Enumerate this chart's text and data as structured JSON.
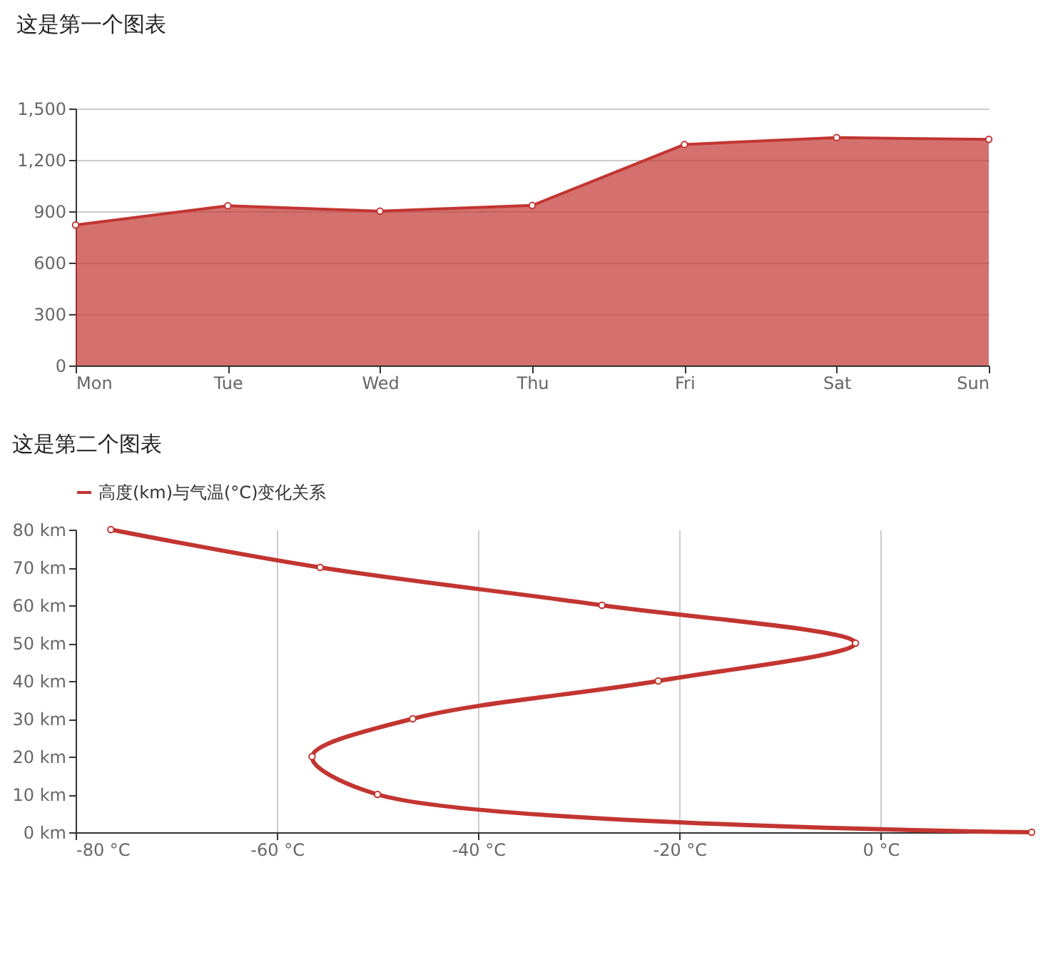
{
  "chart_data": [
    {
      "type": "area",
      "title": "这是第一个图表",
      "categories": [
        "Mon",
        "Tue",
        "Wed",
        "Thu",
        "Fri",
        "Sat",
        "Sun"
      ],
      "series": [
        {
          "color": "#c23531",
          "values": [
            820,
            932,
            901,
            934,
            1290,
            1330,
            1320
          ]
        }
      ],
      "ylim": [
        0,
        1500
      ],
      "yticks": [
        0,
        300,
        600,
        900,
        {
          "value": 1200,
          "label": "1,200"
        },
        {
          "value": 1500,
          "label": "1,500"
        }
      ],
      "grid": "y",
      "marker": "circle",
      "legend": false
    },
    {
      "type": "line",
      "title": "这是第二个图表",
      "legend": "top",
      "series": [
        {
          "name": "高度(km)与气温(°C)变化关系",
          "color": "#c23531",
          "x": [
            15,
            -50,
            -56.5,
            -46.5,
            -22.1,
            -2.5,
            -27.7,
            -55.7,
            -76.5
          ],
          "values": [
            0,
            10,
            20,
            30,
            40,
            50,
            60,
            70,
            80
          ]
        }
      ],
      "xlim": [
        -80,
        15
      ],
      "xticks": [
        {
          "value": -80,
          "label": "-80 °C"
        },
        {
          "value": -60,
          "label": "-60 °C"
        },
        {
          "value": -40,
          "label": "-40 °C"
        },
        {
          "value": -20,
          "label": "-20 °C"
        },
        {
          "value": 0,
          "label": "0 °C"
        }
      ],
      "ylim": [
        0,
        80
      ],
      "yticks": [
        {
          "value": 0,
          "label": "0 km"
        },
        {
          "value": 10,
          "label": "10 km"
        },
        {
          "value": 20,
          "label": "20 km"
        },
        {
          "value": 30,
          "label": "30 km"
        },
        {
          "value": 40,
          "label": "40 km"
        },
        {
          "value": 50,
          "label": "50 km"
        },
        {
          "value": 60,
          "label": "60 km"
        },
        {
          "value": 70,
          "label": "70 km"
        },
        {
          "value": 80,
          "label": "80 km"
        }
      ],
      "grid": "x",
      "marker": "circle"
    }
  ]
}
